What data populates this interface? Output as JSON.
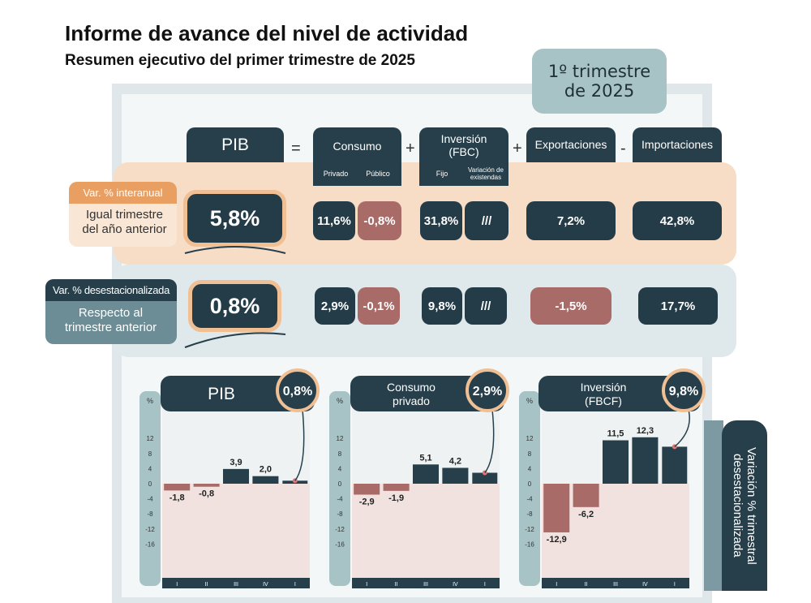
{
  "title": "Informe de avance del nivel de actividad",
  "subtitle": "Resumen ejecutivo del primer trimestre de 2025",
  "quarter_badge": {
    "line1": "1º trimestre",
    "line2": "de 2025"
  },
  "equation": {
    "pib": "PIB",
    "eq": "=",
    "plus1": "+",
    "plus2": "+",
    "minus": "-",
    "consumo": "Consumo",
    "consumo_sub1": "Privado",
    "consumo_sub2": "Público",
    "inversion": "Inversión",
    "inversion_paren": "(FBC)",
    "inversion_sub1": "Fijo",
    "inversion_sub2a": "Variación de",
    "inversion_sub2b": "existendas",
    "exportaciones": "Exportaciones",
    "importaciones": "Importaciones"
  },
  "row_interanual": {
    "tag": "Var. % interanual",
    "desc_l1": "Igual trimestre",
    "desc_l2": "del año anterior",
    "pib": "5,8%",
    "privado": "11,6%",
    "publico": "-0,8%",
    "fijo": "31,8%",
    "variacion": "///",
    "exportaciones": "7,2%",
    "importaciones": "42,8%"
  },
  "row_desest": {
    "tag": "Var. % desestacionalizada",
    "desc_l1": "Respecto al",
    "desc_l2": "trimestre anterior",
    "pib": "0,8%",
    "privado": "2,9%",
    "publico": "-0,1%",
    "fijo": "9,8%",
    "variacion": "///",
    "exportaciones": "-1,5%",
    "importaciones": "17,7%"
  },
  "side_label": {
    "l1": "Variación % trimestral",
    "l2": "desestacionalizada"
  },
  "colors": {
    "dark": "#263f4b",
    "positive_bar": "#263f4b",
    "negative_bar": "#a86b68",
    "accent": "#f0bf94"
  },
  "chart_data": [
    {
      "type": "bar",
      "title": "PIB",
      "badge": "0,8%",
      "ylabel": "%",
      "ylim": [
        -16,
        16
      ],
      "yticks": [
        12,
        8,
        4,
        0,
        -4,
        -8,
        -12,
        -16
      ],
      "categories": [
        "I",
        "II",
        "III",
        "IV",
        "I"
      ],
      "values": [
        -1.8,
        -0.8,
        3.9,
        2.0,
        0.8
      ],
      "labels": [
        "-1,8",
        "-0,8",
        "3,9",
        "2,0",
        ""
      ]
    },
    {
      "type": "bar",
      "title": "Consumo privado",
      "title_l1": "Consumo",
      "title_l2": "privado",
      "badge": "2,9%",
      "ylabel": "%",
      "ylim": [
        -16,
        16
      ],
      "yticks": [
        12,
        8,
        4,
        0,
        -4,
        -8,
        -12,
        -16
      ],
      "categories": [
        "I",
        "II",
        "III",
        "IV",
        "I"
      ],
      "values": [
        -2.9,
        -1.9,
        5.1,
        4.2,
        2.9
      ],
      "labels": [
        "-2,9",
        "-1,9",
        "5,1",
        "4,2",
        ""
      ]
    },
    {
      "type": "bar",
      "title": "Inversión (FBCF)",
      "title_l1": "Inversión",
      "title_l2": "(FBCF)",
      "badge": "9,8%",
      "ylabel": "%",
      "ylim": [
        -16,
        16
      ],
      "yticks": [
        12,
        8,
        4,
        0,
        -4,
        -8,
        -12,
        -16
      ],
      "categories": [
        "I",
        "II",
        "III",
        "IV",
        "I"
      ],
      "values": [
        -12.9,
        -6.2,
        11.5,
        12.3,
        9.8
      ],
      "labels": [
        "-12,9",
        "-6,2",
        "11,5",
        "12,3",
        ""
      ]
    }
  ]
}
